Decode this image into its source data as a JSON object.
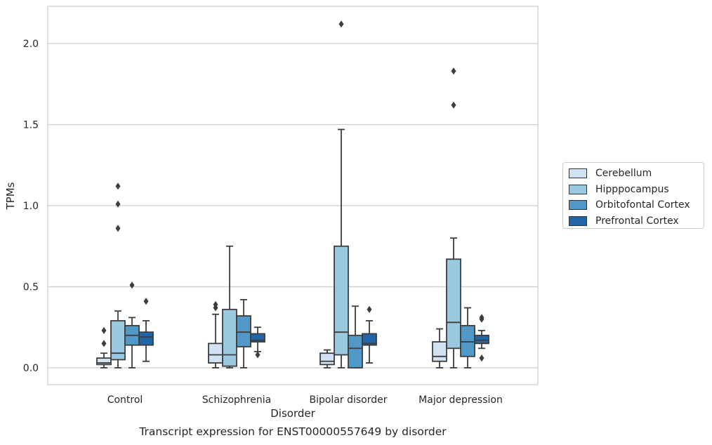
{
  "chart_data": {
    "type": "boxplot",
    "xlabel": "Disorder",
    "ylabel": "TPMs",
    "ylim": [
      -0.1,
      2.25
    ],
    "yticks": [
      0.0,
      0.5,
      1.0,
      1.5,
      2.0
    ],
    "ytick_labels": [
      "0.0",
      "0.5",
      "1.0",
      "1.5",
      "2.0"
    ],
    "grid": "horizontal",
    "legend_position": "right",
    "categories": [
      "Control",
      "Schizophrenia",
      "Bipolar disorder",
      "Major depression"
    ],
    "series": [
      {
        "name": "Cerebellum",
        "color": "#d1e2f2",
        "boxes": [
          {
            "whislo": 0.0,
            "q1": 0.02,
            "med": 0.03,
            "q3": 0.06,
            "whishi": 0.09,
            "fliers": [
              0.15,
              0.23
            ]
          },
          {
            "whislo": 0.0,
            "q1": 0.03,
            "med": 0.08,
            "q3": 0.15,
            "whishi": 0.33,
            "fliers": [
              0.37,
              0.39
            ]
          },
          {
            "whislo": 0.0,
            "q1": 0.02,
            "med": 0.04,
            "q3": 0.09,
            "whishi": 0.11,
            "fliers": []
          },
          {
            "whislo": 0.0,
            "q1": 0.04,
            "med": 0.07,
            "q3": 0.16,
            "whishi": 0.24,
            "fliers": []
          }
        ]
      },
      {
        "name": "Hipppocampus",
        "color": "#9ac8e0",
        "boxes": [
          {
            "whislo": 0.0,
            "q1": 0.05,
            "med": 0.09,
            "q3": 0.29,
            "whishi": 0.35,
            "fliers": [
              0.86,
              1.01,
              1.12
            ]
          },
          {
            "whislo": 0.0,
            "q1": 0.01,
            "med": 0.08,
            "q3": 0.36,
            "whishi": 0.75,
            "fliers": []
          },
          {
            "whislo": 0.0,
            "q1": 0.08,
            "med": 0.22,
            "q3": 0.75,
            "whishi": 1.47,
            "fliers": [
              2.12
            ]
          },
          {
            "whislo": 0.0,
            "q1": 0.12,
            "med": 0.28,
            "q3": 0.67,
            "whishi": 0.8,
            "fliers": [
              1.62,
              1.83
            ]
          }
        ]
      },
      {
        "name": "Orbitofontal Cortex",
        "color": "#5198c9",
        "boxes": [
          {
            "whislo": 0.0,
            "q1": 0.14,
            "med": 0.2,
            "q3": 0.26,
            "whishi": 0.31,
            "fliers": [
              0.51
            ]
          },
          {
            "whislo": 0.0,
            "q1": 0.13,
            "med": 0.22,
            "q3": 0.32,
            "whishi": 0.42,
            "fliers": []
          },
          {
            "whislo": 0.0,
            "q1": 0.0,
            "med": 0.12,
            "q3": 0.2,
            "whishi": 0.38,
            "fliers": []
          },
          {
            "whislo": 0.0,
            "q1": 0.07,
            "med": 0.16,
            "q3": 0.26,
            "whishi": 0.37,
            "fliers": []
          }
        ]
      },
      {
        "name": "Prefrontal Cortex",
        "color": "#2166a9",
        "boxes": [
          {
            "whislo": 0.04,
            "q1": 0.14,
            "med": 0.19,
            "q3": 0.22,
            "whishi": 0.29,
            "fliers": [
              0.41
            ]
          },
          {
            "whislo": 0.1,
            "q1": 0.16,
            "med": 0.17,
            "q3": 0.21,
            "whishi": 0.25,
            "fliers": [
              0.08
            ]
          },
          {
            "whislo": 0.03,
            "q1": 0.14,
            "med": 0.15,
            "q3": 0.21,
            "whishi": 0.29,
            "fliers": [
              0.36
            ]
          },
          {
            "whislo": 0.12,
            "q1": 0.15,
            "med": 0.17,
            "q3": 0.2,
            "whishi": 0.23,
            "fliers": [
              0.06,
              0.3,
              0.31
            ]
          }
        ]
      }
    ]
  },
  "caption": "Transcript expression for ENST00000557649 by disorder"
}
